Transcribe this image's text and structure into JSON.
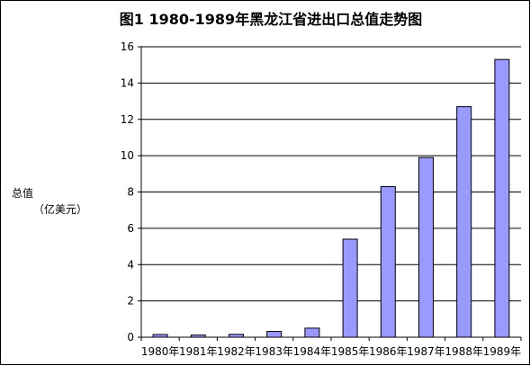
{
  "chart_data": {
    "type": "bar",
    "title": "图1  1980-1989年黑龙江省进出口总值走势图",
    "ylabel": "总值",
    "yunit": "（亿美元）",
    "xlabel": "",
    "categories": [
      "1980年",
      "1981年",
      "1982年",
      "1983年",
      "1984年",
      "1985年",
      "1986年",
      "1987年",
      "1988年",
      "1989年"
    ],
    "values": [
      0.15,
      0.12,
      0.16,
      0.32,
      0.5,
      5.4,
      8.3,
      9.9,
      12.7,
      15.3
    ],
    "ylim": [
      0,
      16
    ],
    "yticks": [
      0,
      2,
      4,
      6,
      8,
      10,
      12,
      14,
      16
    ],
    "grid": true,
    "legend": "none",
    "colors": {
      "bar_fill": "#9999ff",
      "bar_stroke": "#000000",
      "grid": "#000000",
      "axis": "#000000"
    }
  }
}
